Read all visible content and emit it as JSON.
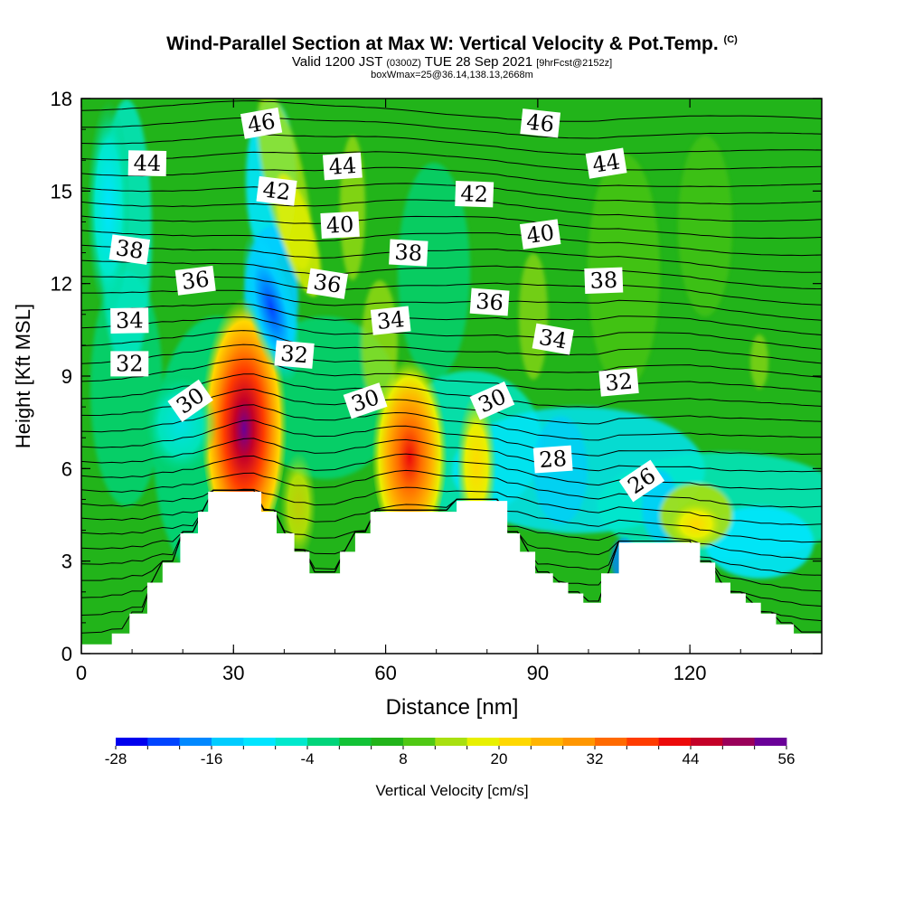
{
  "title": {
    "main": "Wind-Parallel Section at Max W: Vertical Velocity & Pot.Temp.",
    "copyright_mark": "(C)",
    "valid_prefix": "Valid 1200 JST",
    "valid_utc": "(0300Z)",
    "valid_date": "TUE 28 Sep 2021",
    "forecast_tag": "[9hrFcst@2152z]",
    "box_info": "boxWmax=25@36.14,138.13,2668m"
  },
  "chart_data": {
    "type": "heatmap",
    "title": "Wind-Parallel Section at Max W: Vertical Velocity & Pot.Temp.",
    "xlabel": "Distance [nm]",
    "ylabel": "Height [Kft MSL]",
    "xlim": [
      0,
      146
    ],
    "ylim": [
      0,
      18
    ],
    "x_ticks": [
      "0",
      "30",
      "60",
      "90",
      "120"
    ],
    "y_ticks": [
      "0",
      "3",
      "6",
      "9",
      "12",
      "15",
      "18"
    ],
    "colorbar": {
      "label": "Vertical Velocity [cm/s]",
      "tick_labels": [
        "-28",
        "-16",
        "-4",
        "8",
        "20",
        "32",
        "44",
        "56"
      ],
      "levels": [
        -28,
        -24,
        -20,
        -16,
        -12,
        -8,
        -4,
        0,
        4,
        8,
        12,
        16,
        20,
        24,
        28,
        32,
        36,
        40,
        44,
        48,
        52,
        56
      ],
      "colors": [
        "#0000ee",
        "#0044ff",
        "#0088ff",
        "#00ccff",
        "#00e5ff",
        "#00e8cc",
        "#00d47a",
        "#12c236",
        "#22b41a",
        "#50c814",
        "#a8e010",
        "#e8f000",
        "#ffd800",
        "#ffb400",
        "#ff9600",
        "#ff6a00",
        "#ff3c00",
        "#ec0a0a",
        "#c40028",
        "#9a005a",
        "#6a0098"
      ]
    },
    "theta_contour_labels": [
      {
        "label": "46",
        "x": 35.5,
        "y": 17.2
      },
      {
        "label": "46",
        "x": 90.5,
        "y": 17.2
      },
      {
        "label": "44",
        "x": 13,
        "y": 15.9
      },
      {
        "label": "44",
        "x": 51.5,
        "y": 15.8
      },
      {
        "label": "44",
        "x": 103.5,
        "y": 15.9
      },
      {
        "label": "42",
        "x": 38.5,
        "y": 15.0
      },
      {
        "label": "42",
        "x": 77.5,
        "y": 14.9
      },
      {
        "label": "40",
        "x": 51,
        "y": 13.9
      },
      {
        "label": "40",
        "x": 90.5,
        "y": 13.6
      },
      {
        "label": "38",
        "x": 9.5,
        "y": 13.1
      },
      {
        "label": "38",
        "x": 64.5,
        "y": 13.0
      },
      {
        "label": "38",
        "x": 103,
        "y": 12.1
      },
      {
        "label": "36",
        "x": 22.5,
        "y": 12.1
      },
      {
        "label": "36",
        "x": 48.5,
        "y": 12.0
      },
      {
        "label": "36",
        "x": 80.5,
        "y": 11.4
      },
      {
        "label": "34",
        "x": 9.5,
        "y": 10.8
      },
      {
        "label": "34",
        "x": 61,
        "y": 10.8
      },
      {
        "label": "34",
        "x": 93,
        "y": 10.2
      },
      {
        "label": "32",
        "x": 42,
        "y": 9.7
      },
      {
        "label": "32",
        "x": 9.5,
        "y": 9.4
      },
      {
        "label": "32",
        "x": 106,
        "y": 8.8
      },
      {
        "label": "30",
        "x": 21.5,
        "y": 8.2
      },
      {
        "label": "30",
        "x": 56,
        "y": 8.2
      },
      {
        "label": "30",
        "x": 81,
        "y": 8.2
      },
      {
        "label": "28",
        "x": 93,
        "y": 6.3
      },
      {
        "label": "26",
        "x": 110.5,
        "y": 5.6
      }
    ],
    "terrain_profile": [
      [
        0,
        0.3
      ],
      [
        6,
        0.3
      ],
      [
        6,
        0.65
      ],
      [
        9.5,
        0.65
      ],
      [
        9.5,
        1.3
      ],
      [
        13,
        1.3
      ],
      [
        13,
        2.3
      ],
      [
        16,
        2.3
      ],
      [
        16,
        2.95
      ],
      [
        19.5,
        2.95
      ],
      [
        19.5,
        3.9
      ],
      [
        23,
        3.9
      ],
      [
        23,
        4.6
      ],
      [
        25,
        4.6
      ],
      [
        25,
        5.25
      ],
      [
        33,
        5.25
      ],
      [
        35.5,
        5.25
      ],
      [
        35.5,
        4.6
      ],
      [
        38.5,
        4.6
      ],
      [
        38.5,
        3.9
      ],
      [
        42,
        3.9
      ],
      [
        42,
        3.3
      ],
      [
        45,
        3.3
      ],
      [
        45,
        2.6
      ],
      [
        51,
        2.6
      ],
      [
        51,
        3.3
      ],
      [
        54,
        3.3
      ],
      [
        54,
        3.9
      ],
      [
        57,
        3.9
      ],
      [
        57,
        4.6
      ],
      [
        74,
        4.6
      ],
      [
        74,
        4.95
      ],
      [
        84,
        4.95
      ],
      [
        84,
        3.9
      ],
      [
        86.5,
        3.9
      ],
      [
        86.5,
        3.3
      ],
      [
        89.5,
        3.3
      ],
      [
        89.5,
        2.6
      ],
      [
        93,
        2.6
      ],
      [
        93,
        2.3
      ],
      [
        96,
        2.3
      ],
      [
        96,
        1.95
      ],
      [
        99,
        1.95
      ],
      [
        99,
        1.65
      ],
      [
        102.5,
        1.65
      ],
      [
        102.5,
        2.6
      ],
      [
        106,
        2.6
      ],
      [
        106,
        3.6
      ],
      [
        122,
        3.6
      ],
      [
        122,
        2.95
      ],
      [
        125,
        2.95
      ],
      [
        125,
        2.3
      ],
      [
        128,
        2.3
      ],
      [
        128,
        1.95
      ],
      [
        131,
        1.95
      ],
      [
        131,
        1.65
      ],
      [
        134,
        1.65
      ],
      [
        134,
        1.3
      ],
      [
        137,
        1.3
      ],
      [
        137,
        0.95
      ],
      [
        140.5,
        0.95
      ],
      [
        140.5,
        0.65
      ],
      [
        146,
        0.65
      ]
    ],
    "grid": false
  }
}
